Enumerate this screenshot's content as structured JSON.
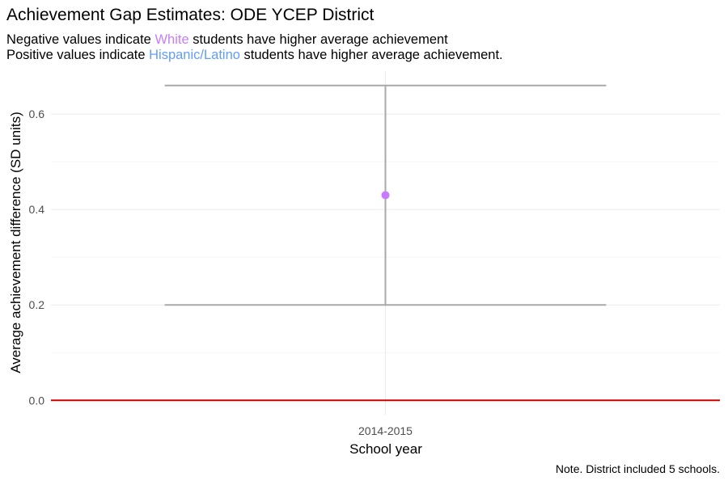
{
  "title": "Achievement Gap Estimates: ODE YCEP District",
  "subtitle": {
    "line1": {
      "prefix": "Negative values indicate ",
      "group": "White",
      "suffix": " students have higher average achievement"
    },
    "line2": {
      "prefix": "Positive values indicate ",
      "group": "Hispanic/Latino",
      "suffix": " students have higher average achievement."
    }
  },
  "caption": "Note. District included 5 schools.",
  "colors": {
    "white_group": "#c77cff",
    "hispanic_group": "#619cff",
    "point": "#c77cff",
    "errorbar": "#a9a9a9",
    "reference_line": "#cc0000",
    "grid_major": "#ebebeb",
    "grid_minor": "#f5f5f5",
    "tick_label": "#4d4d4d"
  },
  "chart_data": {
    "type": "scatter",
    "xlabel": "School year",
    "ylabel": "Average achievement difference (SD units)",
    "categories": [
      "2014-2015"
    ],
    "series": [
      {
        "values": [
          0.43
        ],
        "lower": [
          0.2
        ],
        "upper": [
          0.66
        ]
      }
    ],
    "reference_line": 0,
    "yticks": [
      0.0,
      0.2,
      0.4,
      0.6
    ],
    "ytick_labels": [
      "0.0",
      "0.2",
      "0.4",
      "0.6"
    ],
    "ylim": [
      -0.03,
      0.69
    ],
    "grid": true
  }
}
